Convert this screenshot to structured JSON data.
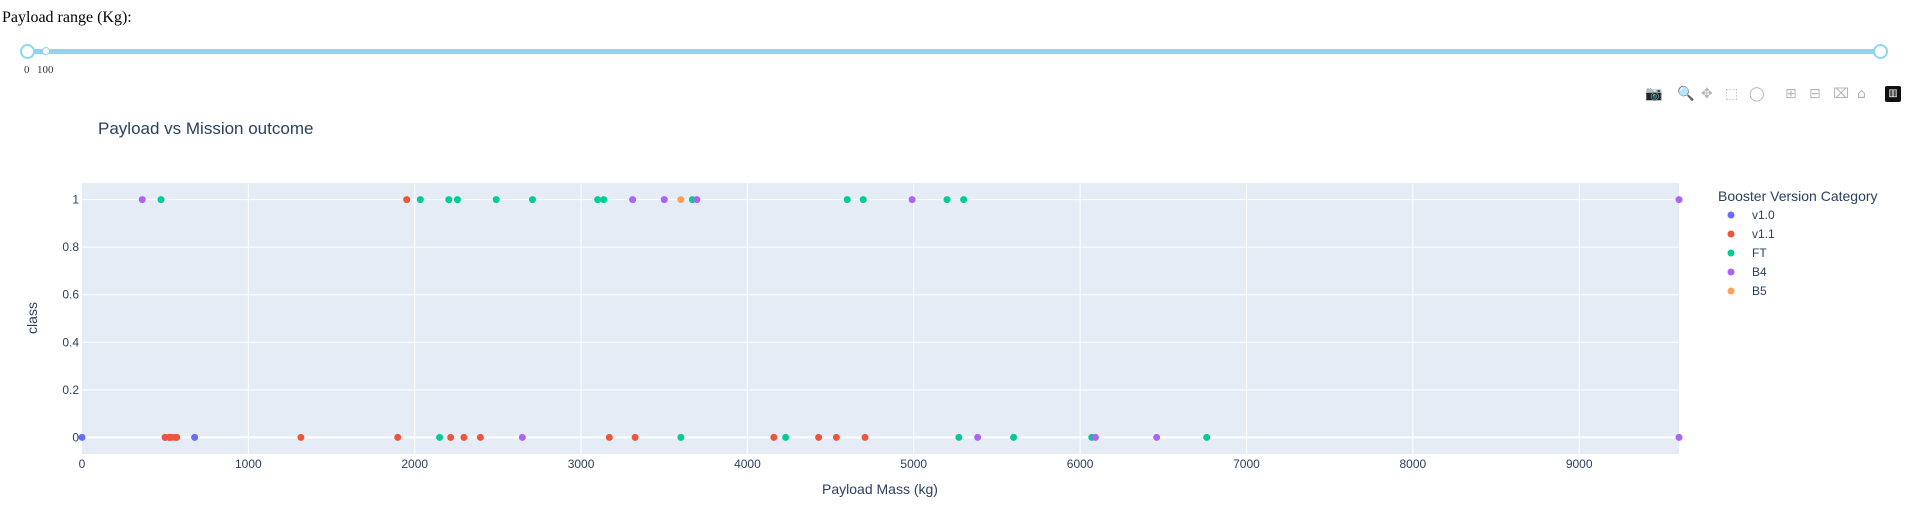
{
  "slider": {
    "label": "Payload range (Kg):",
    "min_label": "0",
    "second_label": "100",
    "range": [
      0,
      9600
    ],
    "marks": [
      0,
      100
    ]
  },
  "modebar": {
    "icons": [
      "camera-icon",
      "zoom-icon",
      "pan-icon",
      "box-select-icon",
      "lasso-icon",
      "zoom-in-icon",
      "zoom-out-icon",
      "autoscale-icon",
      "reset-axes-icon",
      "plotly-logo-icon"
    ]
  },
  "chart_data": {
    "type": "scatter",
    "title": "Payload vs Mission outcome",
    "xlabel": "Payload Mass (kg)",
    "ylabel": "class",
    "xlim": [
      0,
      9600
    ],
    "ylim": [
      -0.07,
      1.07
    ],
    "xticks": [
      0,
      1000,
      2000,
      3000,
      4000,
      5000,
      6000,
      7000,
      8000,
      9000
    ],
    "yticks": [
      0,
      0.2,
      0.4,
      0.6,
      0.8,
      1
    ],
    "ytick_labels": [
      "0",
      "0.2",
      "0.4",
      "0.6",
      "0.8",
      "1"
    ],
    "grid": true,
    "legend_title": "Booster Version Category",
    "legend_position": "right",
    "series": [
      {
        "name": "v1.0",
        "color": "#636efa",
        "points": [
          [
            0,
            0
          ],
          [
            525,
            0
          ],
          [
            677,
            0
          ],
          [
            500,
            0
          ]
        ]
      },
      {
        "name": "v1.1",
        "color": "#ef553b",
        "points": [
          [
            1952,
            1
          ],
          [
            500,
            0
          ],
          [
            525,
            0
          ],
          [
            570,
            0
          ],
          [
            1316,
            0
          ],
          [
            1898,
            0
          ],
          [
            2216,
            0
          ],
          [
            2296,
            0
          ],
          [
            2395,
            0
          ],
          [
            3170,
            0
          ],
          [
            3325,
            0
          ],
          [
            4159,
            0
          ],
          [
            4428,
            0
          ],
          [
            4535,
            0
          ],
          [
            4707,
            0
          ],
          [
            540,
            0
          ],
          [
            560,
            0
          ]
        ]
      },
      {
        "name": "FT",
        "color": "#00cc96",
        "points": [
          [
            475,
            1
          ],
          [
            2034,
            1
          ],
          [
            2205,
            1
          ],
          [
            2257,
            1
          ],
          [
            2490,
            1
          ],
          [
            2708,
            1
          ],
          [
            3100,
            1
          ],
          [
            3136,
            1
          ],
          [
            3669,
            1
          ],
          [
            4600,
            1
          ],
          [
            4696,
            1
          ],
          [
            5200,
            1
          ],
          [
            5300,
            1
          ],
          [
            2150,
            0
          ],
          [
            3600,
            0
          ],
          [
            4230,
            0
          ],
          [
            5271,
            0
          ],
          [
            5600,
            0
          ],
          [
            6070,
            0
          ],
          [
            6761,
            0
          ]
        ]
      },
      {
        "name": "B4",
        "color": "#ab63fa",
        "points": [
          [
            362,
            1
          ],
          [
            3310,
            1
          ],
          [
            3500,
            1
          ],
          [
            3696,
            1
          ],
          [
            4990,
            1
          ],
          [
            9600,
            1
          ],
          [
            2647,
            0
          ],
          [
            5384,
            0
          ],
          [
            6092,
            0
          ],
          [
            6460,
            0
          ],
          [
            9600,
            0
          ]
        ]
      },
      {
        "name": "B5",
        "color": "#ffa15a",
        "points": [
          [
            3600,
            1
          ]
        ]
      }
    ]
  }
}
